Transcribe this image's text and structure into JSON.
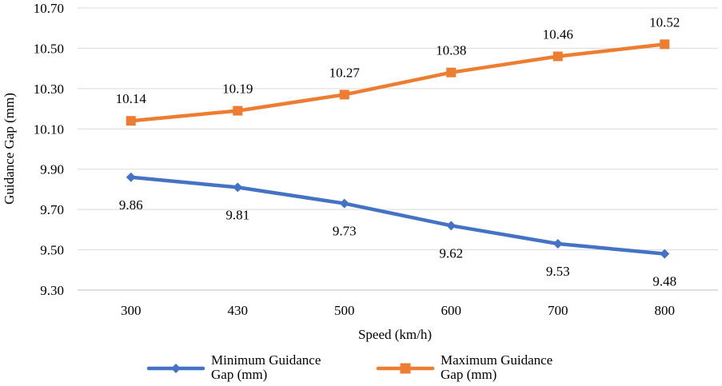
{
  "chart_data": {
    "type": "line",
    "xlabel": "Speed (km/h)",
    "ylabel": "Guidance Gap (mm)",
    "categories": [
      "300",
      "430",
      "500",
      "600",
      "700",
      "800"
    ],
    "ylim": [
      9.3,
      10.7
    ],
    "yticks": [
      "9.30",
      "9.50",
      "9.70",
      "9.90",
      "10.10",
      "10.30",
      "10.50",
      "10.70"
    ],
    "grid": true,
    "legend_position": "bottom",
    "series": [
      {
        "name": "Minimum Guidance Gap (mm)",
        "legend_lines": [
          "Minimum Guidance",
          "Gap (mm)"
        ],
        "values": [
          9.86,
          9.81,
          9.73,
          9.62,
          9.53,
          9.48
        ],
        "labels": [
          "9.86",
          "9.81",
          "9.73",
          "9.62",
          "9.53",
          "9.48"
        ],
        "color": "#4472C4",
        "marker": "diamond",
        "label_position": "below"
      },
      {
        "name": "Maximum Guidance Gap (mm)",
        "legend_lines": [
          "Maximum Guidance",
          "Gap (mm)"
        ],
        "values": [
          10.14,
          10.19,
          10.27,
          10.38,
          10.46,
          10.52
        ],
        "labels": [
          "10.14",
          "10.19",
          "10.27",
          "10.38",
          "10.46",
          "10.52"
        ],
        "color": "#ED7D31",
        "marker": "square",
        "label_position": "above"
      }
    ]
  }
}
